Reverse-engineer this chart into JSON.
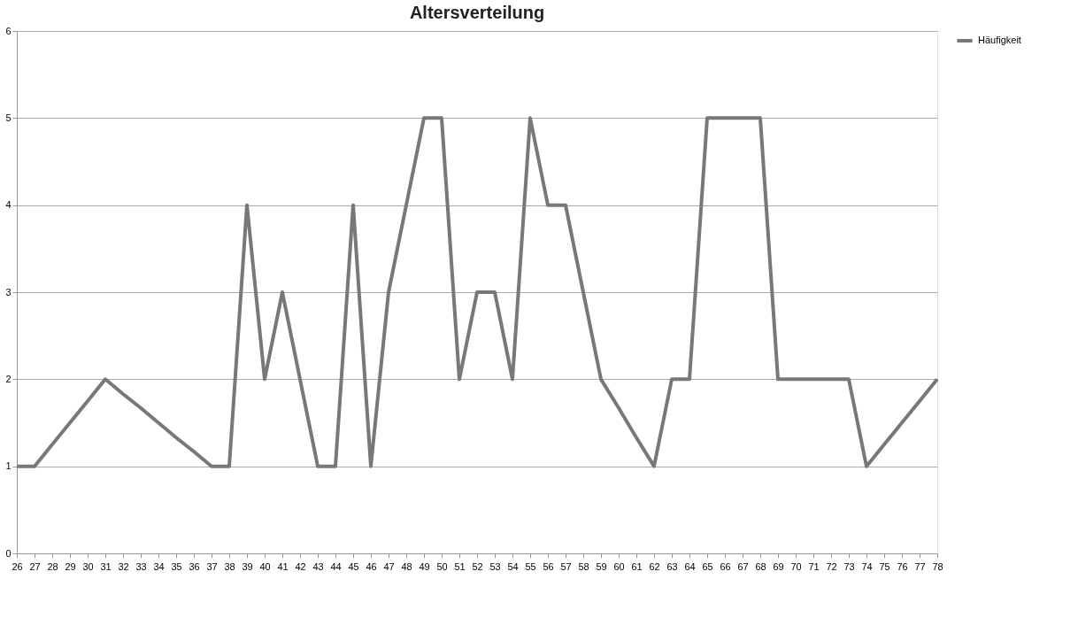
{
  "chart_data": {
    "type": "line",
    "title": "Altersverteilung",
    "categories": [
      "26",
      "27",
      "28",
      "29",
      "30",
      "31",
      "32",
      "33",
      "34",
      "35",
      "36",
      "37",
      "38",
      "39",
      "40",
      "41",
      "42",
      "43",
      "44",
      "45",
      "46",
      "47",
      "48",
      "49",
      "50",
      "51",
      "52",
      "53",
      "54",
      "55",
      "56",
      "57",
      "58",
      "59",
      "60",
      "61",
      "62",
      "63",
      "64",
      "65",
      "66",
      "67",
      "68",
      "69",
      "70",
      "71",
      "72",
      "73",
      "74",
      "75",
      "76",
      "77",
      "78"
    ],
    "series": [
      {
        "name": "Häufigkeit",
        "color": "#787878",
        "values": [
          1,
          1,
          1.25,
          1.5,
          1.75,
          2,
          1.83,
          1.67,
          1.5,
          1.33,
          1.17,
          1,
          1,
          4,
          2,
          3,
          2,
          1,
          1,
          4,
          1,
          3,
          4,
          5,
          5,
          2,
          3,
          3,
          2,
          5,
          4,
          4,
          3,
          2,
          1.67,
          1.33,
          1,
          2,
          2,
          5,
          5,
          5,
          5,
          2,
          2,
          2,
          2,
          2,
          1,
          1.25,
          1.5,
          1.75,
          2
        ]
      }
    ],
    "ylim": [
      0,
      6
    ],
    "yticks": [
      0,
      1,
      2,
      3,
      4,
      5,
      6
    ],
    "grid": "y",
    "legend": "right",
    "marker": "none",
    "line_style": "solid"
  }
}
